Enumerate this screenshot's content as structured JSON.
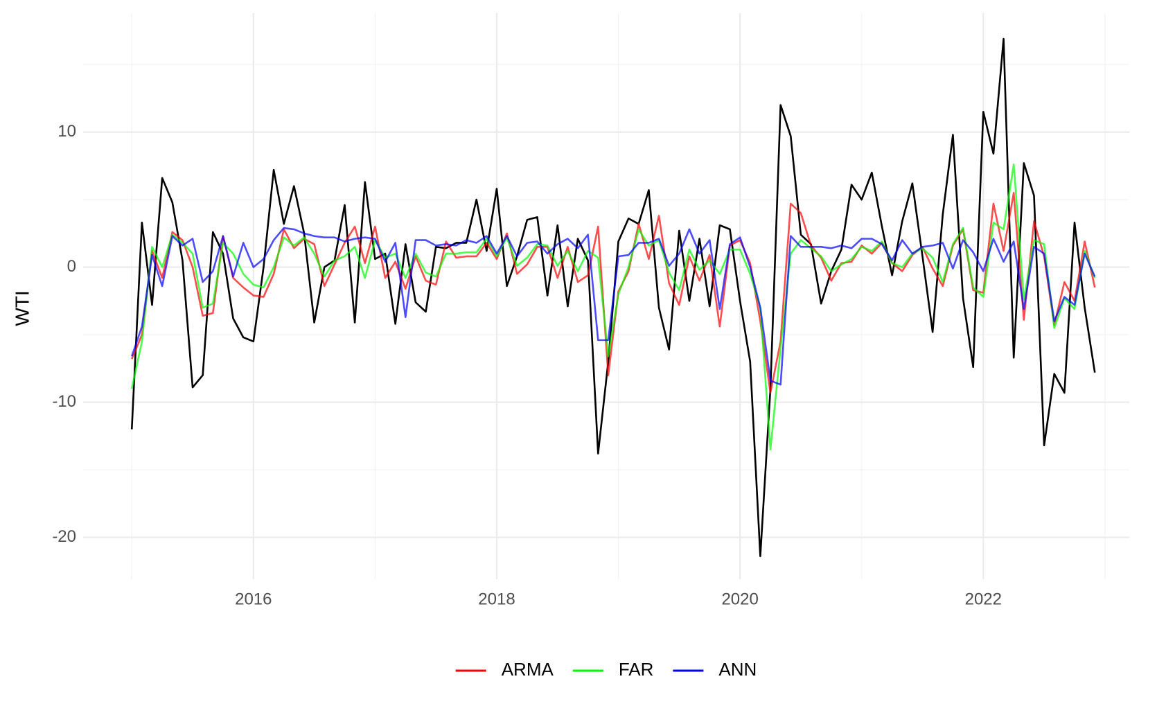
{
  "chart_data": {
    "type": "line",
    "ylabel": "WTI",
    "x": [
      2015,
      2015.0833,
      2015.1667,
      2015.25,
      2015.3333,
      2015.4167,
      2015.5,
      2015.5833,
      2015.6667,
      2015.75,
      2015.8333,
      2015.9167,
      2016,
      2016.0833,
      2016.1667,
      2016.25,
      2016.3333,
      2016.4167,
      2016.5,
      2016.5833,
      2016.6667,
      2016.75,
      2016.8333,
      2016.9167,
      2017,
      2017.0833,
      2017.1667,
      2017.25,
      2017.3333,
      2017.4167,
      2017.5,
      2017.5833,
      2017.6667,
      2017.75,
      2017.8333,
      2017.9167,
      2018,
      2018.0833,
      2018.1667,
      2018.25,
      2018.3333,
      2018.4167,
      2018.5,
      2018.5833,
      2018.6667,
      2018.75,
      2018.8333,
      2018.9167,
      2019,
      2019.0833,
      2019.1667,
      2019.25,
      2019.3333,
      2019.4167,
      2019.5,
      2019.5833,
      2019.6667,
      2019.75,
      2019.8333,
      2019.9167,
      2020,
      2020.0833,
      2020.1667,
      2020.25,
      2020.3333,
      2020.4167,
      2020.5,
      2020.5833,
      2020.6667,
      2020.75,
      2020.8333,
      2020.9167,
      2021,
      2021.0833,
      2021.1667,
      2021.25,
      2021.3333,
      2021.4167,
      2021.5,
      2021.5833,
      2021.6667,
      2021.75,
      2021.8333,
      2021.9167,
      2022,
      2022.0833,
      2022.1667,
      2022.25,
      2022.3333,
      2022.4167,
      2022.5,
      2022.5833,
      2022.6667,
      2022.75,
      2022.8333,
      2022.9167
    ],
    "series": [
      {
        "color": "#000000",
        "values": [
          -12,
          3.3,
          -2.8,
          6.6,
          4.8,
          0.5,
          -8.9,
          -8.0,
          2.6,
          1.0,
          -3.8,
          -5.2,
          -5.5,
          0,
          7.2,
          3.2,
          6.0,
          2.5,
          -4.1,
          0.0,
          0.5,
          4.6,
          -4.1,
          6.3,
          0.6,
          1.0,
          -4.2,
          1.7,
          -2.6,
          -3.3,
          1.5,
          1.4,
          1.8,
          1.8,
          5.0,
          1.2,
          5.8,
          -1.4,
          0.8,
          3.5,
          3.7,
          -2.1,
          3.1,
          -2.9,
          2.1,
          0.5,
          -13.8,
          -7.0,
          1.9,
          3.6,
          3.2,
          5.7,
          -3.0,
          -6.1,
          2.7,
          -2.5,
          2.1,
          -2.9,
          3.1,
          2.8,
          -2.5,
          -7.0,
          -21.4,
          -9.0,
          12.0,
          9.7,
          2.4,
          1.7,
          -2.7,
          -0.3,
          1.3,
          6.1,
          5.0,
          7.0,
          3.0,
          -0.6,
          3.4,
          6.2,
          0.8,
          -4.8,
          3.9,
          9.8,
          -2.3,
          -7.4,
          11.5,
          8.4,
          16.9,
          -6.7,
          7.7,
          5.3,
          -13.2,
          -7.9,
          -9.3,
          3.3,
          -3.0,
          -7.8
        ]
      },
      {
        "name": "ARMA",
        "color": "#ff0000",
        "values": [
          -6.8,
          -5.0,
          1.2,
          -0.8,
          2.6,
          2.0,
          0.0,
          -3.6,
          -3.4,
          2.3,
          -0.8,
          -1.5,
          -2.1,
          -2.2,
          -0.5,
          2.8,
          1.4,
          2.1,
          1.7,
          -1.4,
          0.2,
          1.8,
          3.0,
          0.3,
          3.0,
          -0.8,
          0.4,
          -1.6,
          0.8,
          -1.0,
          -1.3,
          1.9,
          0.7,
          0.8,
          0.8,
          1.8,
          0.6,
          2.5,
          -0.5,
          0.2,
          1.5,
          1.5,
          -0.8,
          1.5,
          -1.1,
          -0.6,
          3.0,
          -8.0,
          -1.8,
          -0.3,
          3.2,
          0.6,
          3.8,
          -1.2,
          -2.8,
          0.8,
          -1.0,
          0.9,
          -4.4,
          1.6,
          2.0,
          0.3,
          -4.0,
          -9.3,
          -5.5,
          4.7,
          4.0,
          1.6,
          0.7,
          -1.0,
          0.3,
          0.4,
          1.6,
          1.0,
          1.8,
          0.3,
          -0.3,
          0.9,
          1.5,
          -0.1,
          -1.4,
          1.6,
          2.8,
          -1.7,
          -1.9,
          4.7,
          1.2,
          5.5,
          -3.9,
          3.4,
          0.8,
          -4.3,
          -1.1,
          -2.5,
          1.9,
          -1.5
        ]
      },
      {
        "name": "FAR",
        "color": "#00ff00",
        "values": [
          -9.0,
          -5.5,
          1.5,
          0.0,
          2.4,
          1.8,
          1.0,
          -3.0,
          -2.7,
          1.8,
          1.0,
          -0.5,
          -1.3,
          -1.5,
          0.0,
          2.2,
          1.6,
          2.2,
          1.0,
          -0.7,
          0.5,
          0.8,
          1.5,
          -0.8,
          2.0,
          0.7,
          1.0,
          -0.8,
          1.0,
          -0.4,
          -0.7,
          1.0,
          1.0,
          1.1,
          1.1,
          2.1,
          0.8,
          2.2,
          0.1,
          0.7,
          1.7,
          1.6,
          0.1,
          1.2,
          -0.3,
          1.2,
          0.7,
          -6.6,
          -2.0,
          0.0,
          2.8,
          1.6,
          2.0,
          -0.4,
          -1.7,
          1.3,
          -0.2,
          0.5,
          -0.5,
          1.3,
          1.3,
          -0.5,
          -3.0,
          -13.5,
          -6.0,
          1.0,
          2.0,
          1.4,
          0.8,
          -0.3,
          0.2,
          0.6,
          1.5,
          1.2,
          1.9,
          0.3,
          0.0,
          1.0,
          1.4,
          0.7,
          -1.1,
          1.7,
          2.9,
          -1.5,
          -2.2,
          3.3,
          2.8,
          7.6,
          -2.4,
          2.0,
          1.7,
          -4.5,
          -2.3,
          -3.1,
          1.2,
          -0.8
        ]
      },
      {
        "name": "ANN",
        "color": "#0000ff",
        "values": [
          -6.6,
          -4.4,
          0.9,
          -1.4,
          2.3,
          1.6,
          2.1,
          -1.1,
          -0.3,
          2.3,
          -0.7,
          1.8,
          0.0,
          0.6,
          2.0,
          2.9,
          2.8,
          2.5,
          2.3,
          2.2,
          2.2,
          1.9,
          2.1,
          2.2,
          2.1,
          0.4,
          1.8,
          -3.7,
          2.0,
          2.0,
          1.6,
          1.7,
          1.6,
          2.0,
          1.8,
          2.3,
          1.0,
          2.3,
          0.8,
          1.8,
          1.9,
          1.0,
          1.7,
          2.1,
          1.4,
          2.4,
          -5.4,
          -5.4,
          0.8,
          0.9,
          1.8,
          1.8,
          2.1,
          0.1,
          1.0,
          2.8,
          1.0,
          2.0,
          -3.1,
          1.7,
          2.2,
          0.0,
          -3.0,
          -8.4,
          -8.7,
          2.3,
          1.5,
          1.5,
          1.5,
          1.4,
          1.6,
          1.4,
          2.1,
          2.1,
          1.7,
          0.5,
          2.0,
          1.0,
          1.5,
          1.6,
          1.8,
          -0.1,
          2.0,
          1.1,
          -0.3,
          2.1,
          0.4,
          1.9,
          -3.1,
          1.5,
          1.0,
          -4.0,
          -2.2,
          -2.8,
          1.0,
          -0.7
        ]
      }
    ],
    "xlim": [
      2014.6,
      2023.2
    ],
    "xticks": [
      2016,
      2018,
      2020,
      2022
    ],
    "ylim": [
      -23.1,
      18.8
    ],
    "yticks": [
      -20,
      -10,
      0,
      10
    ],
    "grid": true,
    "legend": "bottom"
  }
}
